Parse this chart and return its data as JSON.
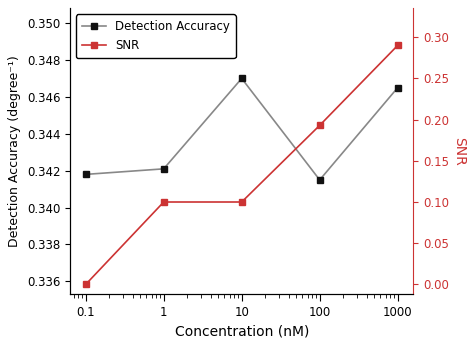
{
  "x": [
    0.1,
    1,
    10,
    100,
    1000
  ],
  "detection_accuracy": [
    0.3418,
    0.3421,
    0.347,
    0.3415,
    0.3465
  ],
  "snr": [
    0.0,
    0.1,
    0.1,
    0.193,
    0.29
  ],
  "da_line_color": "#888888",
  "da_marker_color": "#111111",
  "snr_color": "#cc3333",
  "da_label": "Detection Accuracy",
  "snr_label": "SNR",
  "xlabel": "Concentration (nM)",
  "ylabel_left": "Detection Accuracy (degree⁻¹)",
  "ylabel_right": "SNR",
  "ylim_left": [
    0.3353,
    0.3508
  ],
  "ylim_right": [
    -0.012,
    0.335
  ],
  "yticks_left": [
    0.336,
    0.338,
    0.34,
    0.342,
    0.344,
    0.346,
    0.348,
    0.35
  ],
  "yticks_right": [
    0.0,
    0.05,
    0.1,
    0.15,
    0.2,
    0.25,
    0.3
  ],
  "background_color": "#ffffff"
}
